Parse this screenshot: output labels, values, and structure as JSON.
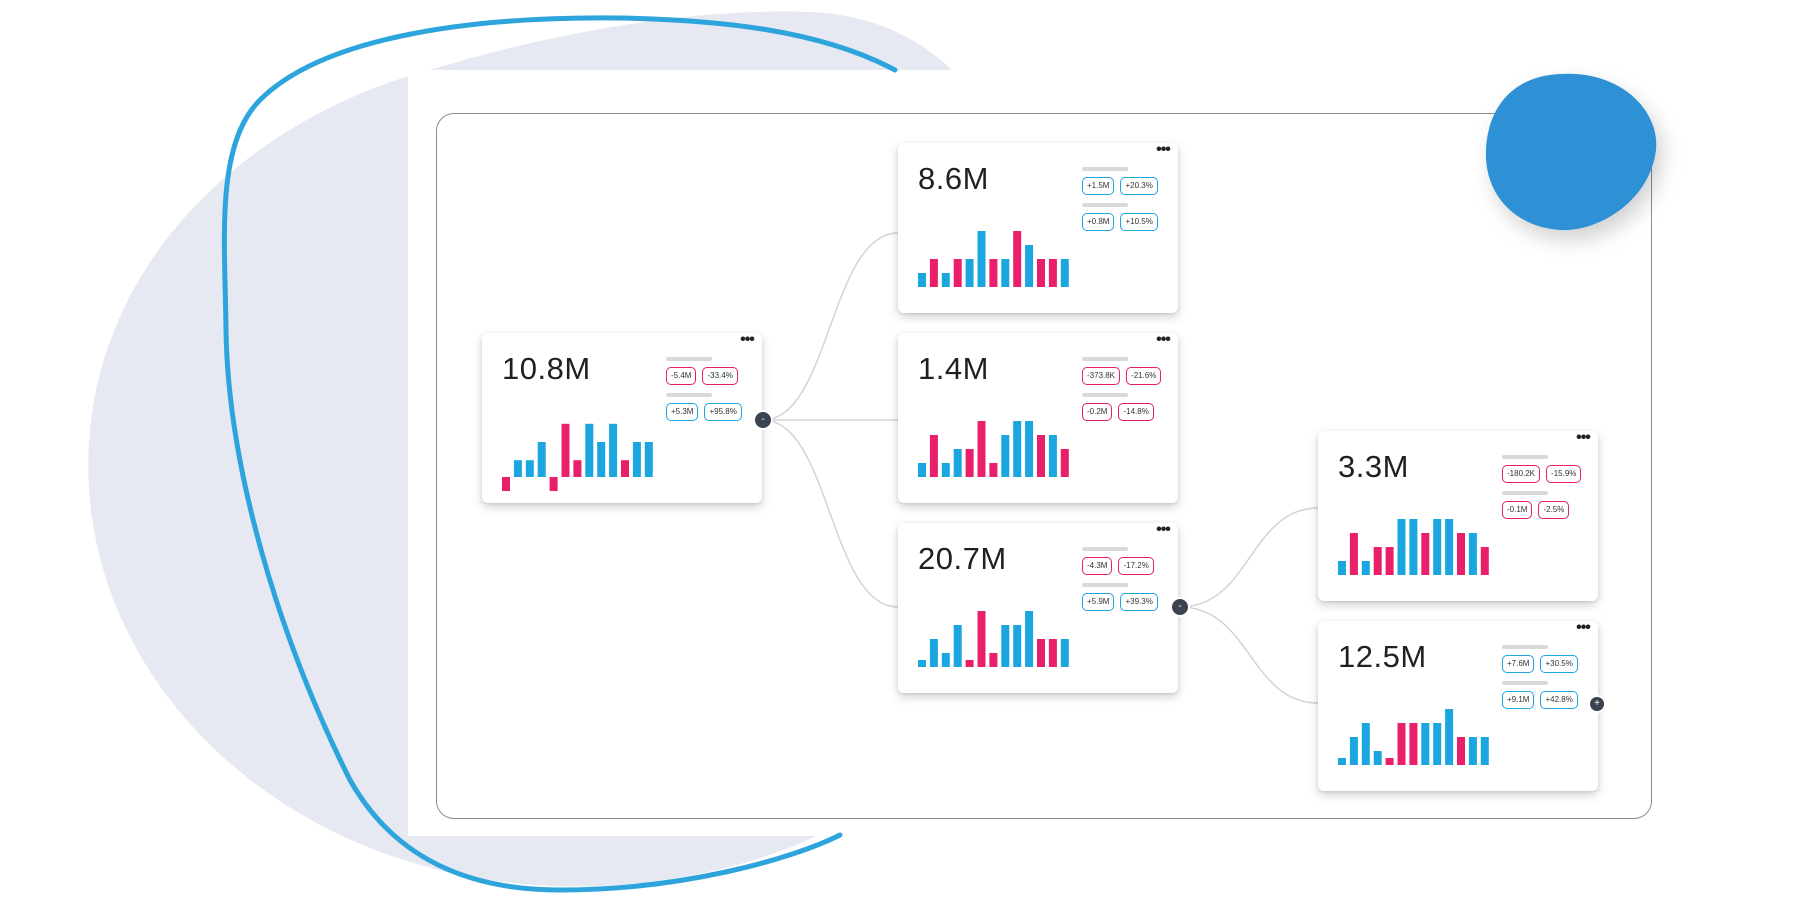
{
  "colors": {
    "positive": "#1ba6e0",
    "negative": "#ea1f6c",
    "connector": "#d4d4d8",
    "node": "#3b4250",
    "backdrop": "#e6e8f2",
    "accent_blob": "#2e91d6",
    "outline_stroke": "#2ea4dd"
  },
  "cards": [
    {
      "id": "root",
      "value": "10.8M",
      "pills": [
        {
          "label": "-5.4M",
          "tone": "negative"
        },
        {
          "label": "-33.4%",
          "tone": "negative"
        },
        {
          "label": "+5.3M",
          "tone": "positive"
        },
        {
          "label": "+95.8%",
          "tone": "positive"
        }
      ],
      "bars": [
        {
          "v": -1.0,
          "t": "negative"
        },
        {
          "v": 1.2,
          "t": "positive"
        },
        {
          "v": 1.2,
          "t": "positive"
        },
        {
          "v": 2.5,
          "t": "positive"
        },
        {
          "v": -1.0,
          "t": "negative"
        },
        {
          "v": 3.8,
          "t": "negative"
        },
        {
          "v": 1.2,
          "t": "negative"
        },
        {
          "v": 3.8,
          "t": "positive"
        },
        {
          "v": 2.5,
          "t": "positive"
        },
        {
          "v": 3.8,
          "t": "positive"
        },
        {
          "v": 1.2,
          "t": "negative"
        },
        {
          "v": 2.5,
          "t": "positive"
        },
        {
          "v": 2.5,
          "t": "positive"
        }
      ],
      "node_symbol": "-"
    },
    {
      "id": "child-1",
      "value": "8.6M",
      "pills": [
        {
          "label": "+1.5M",
          "tone": "positive"
        },
        {
          "label": "+20.3%",
          "tone": "positive"
        },
        {
          "label": "+0.8M",
          "tone": "positive"
        },
        {
          "label": "+10.5%",
          "tone": "positive"
        }
      ],
      "bars": [
        {
          "v": 1.0,
          "t": "positive"
        },
        {
          "v": 2.0,
          "t": "negative"
        },
        {
          "v": 1.0,
          "t": "positive"
        },
        {
          "v": 2.0,
          "t": "negative"
        },
        {
          "v": 2.0,
          "t": "positive"
        },
        {
          "v": 4.0,
          "t": "positive"
        },
        {
          "v": 2.0,
          "t": "negative"
        },
        {
          "v": 2.0,
          "t": "positive"
        },
        {
          "v": 4.0,
          "t": "negative"
        },
        {
          "v": 3.0,
          "t": "positive"
        },
        {
          "v": 2.0,
          "t": "negative"
        },
        {
          "v": 2.0,
          "t": "negative"
        },
        {
          "v": 2.0,
          "t": "positive"
        }
      ]
    },
    {
      "id": "child-2",
      "value": "1.4M",
      "pills": [
        {
          "label": "-373.8K",
          "tone": "negative"
        },
        {
          "label": "-21.6%",
          "tone": "negative"
        },
        {
          "label": "-0.2M",
          "tone": "negative"
        },
        {
          "label": "-14.8%",
          "tone": "negative"
        }
      ],
      "bars": [
        {
          "v": 1.0,
          "t": "positive"
        },
        {
          "v": 3.0,
          "t": "negative"
        },
        {
          "v": 1.0,
          "t": "positive"
        },
        {
          "v": 2.0,
          "t": "positive"
        },
        {
          "v": 2.0,
          "t": "negative"
        },
        {
          "v": 4.0,
          "t": "negative"
        },
        {
          "v": 1.0,
          "t": "negative"
        },
        {
          "v": 3.0,
          "t": "positive"
        },
        {
          "v": 4.0,
          "t": "positive"
        },
        {
          "v": 4.0,
          "t": "positive"
        },
        {
          "v": 3.0,
          "t": "negative"
        },
        {
          "v": 3.0,
          "t": "positive"
        },
        {
          "v": 2.0,
          "t": "negative"
        }
      ]
    },
    {
      "id": "child-3",
      "value": "20.7M",
      "pills": [
        {
          "label": "-4.3M",
          "tone": "negative"
        },
        {
          "label": "-17.2%",
          "tone": "negative"
        },
        {
          "label": "+5.9M",
          "tone": "positive"
        },
        {
          "label": "+39.3%",
          "tone": "positive"
        }
      ],
      "bars": [
        {
          "v": 0.5,
          "t": "positive"
        },
        {
          "v": 2.0,
          "t": "positive"
        },
        {
          "v": 1.0,
          "t": "positive"
        },
        {
          "v": 3.0,
          "t": "positive"
        },
        {
          "v": 0.5,
          "t": "negative"
        },
        {
          "v": 4.0,
          "t": "negative"
        },
        {
          "v": 1.0,
          "t": "negative"
        },
        {
          "v": 3.0,
          "t": "positive"
        },
        {
          "v": 3.0,
          "t": "positive"
        },
        {
          "v": 4.0,
          "t": "positive"
        },
        {
          "v": 2.0,
          "t": "negative"
        },
        {
          "v": 2.0,
          "t": "negative"
        },
        {
          "v": 2.0,
          "t": "positive"
        }
      ],
      "node_symbol": "-"
    },
    {
      "id": "grandchild-1",
      "value": "3.3M",
      "pills": [
        {
          "label": "-180.2K",
          "tone": "negative"
        },
        {
          "label": "-15.9%",
          "tone": "negative"
        },
        {
          "label": "-0.1M",
          "tone": "negative"
        },
        {
          "label": "-2.5%",
          "tone": "negative"
        }
      ],
      "bars": [
        {
          "v": 1.0,
          "t": "positive"
        },
        {
          "v": 3.0,
          "t": "negative"
        },
        {
          "v": 1.0,
          "t": "positive"
        },
        {
          "v": 2.0,
          "t": "negative"
        },
        {
          "v": 2.0,
          "t": "negative"
        },
        {
          "v": 4.0,
          "t": "positive"
        },
        {
          "v": 4.0,
          "t": "positive"
        },
        {
          "v": 3.0,
          "t": "negative"
        },
        {
          "v": 4.0,
          "t": "positive"
        },
        {
          "v": 4.0,
          "t": "positive"
        },
        {
          "v": 3.0,
          "t": "negative"
        },
        {
          "v": 3.0,
          "t": "positive"
        },
        {
          "v": 2.0,
          "t": "negative"
        }
      ]
    },
    {
      "id": "grandchild-2",
      "value": "12.5M",
      "pills": [
        {
          "label": "+7.6M",
          "tone": "positive"
        },
        {
          "label": "+30.5%",
          "tone": "positive"
        },
        {
          "label": "+9.1M",
          "tone": "positive"
        },
        {
          "label": "+42.8%",
          "tone": "positive"
        }
      ],
      "bars": [
        {
          "v": 0.5,
          "t": "positive"
        },
        {
          "v": 2.0,
          "t": "positive"
        },
        {
          "v": 3.0,
          "t": "positive"
        },
        {
          "v": 1.0,
          "t": "positive"
        },
        {
          "v": 0.5,
          "t": "negative"
        },
        {
          "v": 3.0,
          "t": "negative"
        },
        {
          "v": 3.0,
          "t": "negative"
        },
        {
          "v": 3.0,
          "t": "positive"
        },
        {
          "v": 3.0,
          "t": "positive"
        },
        {
          "v": 4.0,
          "t": "positive"
        },
        {
          "v": 2.0,
          "t": "negative"
        },
        {
          "v": 2.0,
          "t": "positive"
        },
        {
          "v": 2.0,
          "t": "positive"
        }
      ],
      "node_symbol": "+"
    }
  ],
  "menu_symbol": "•••"
}
